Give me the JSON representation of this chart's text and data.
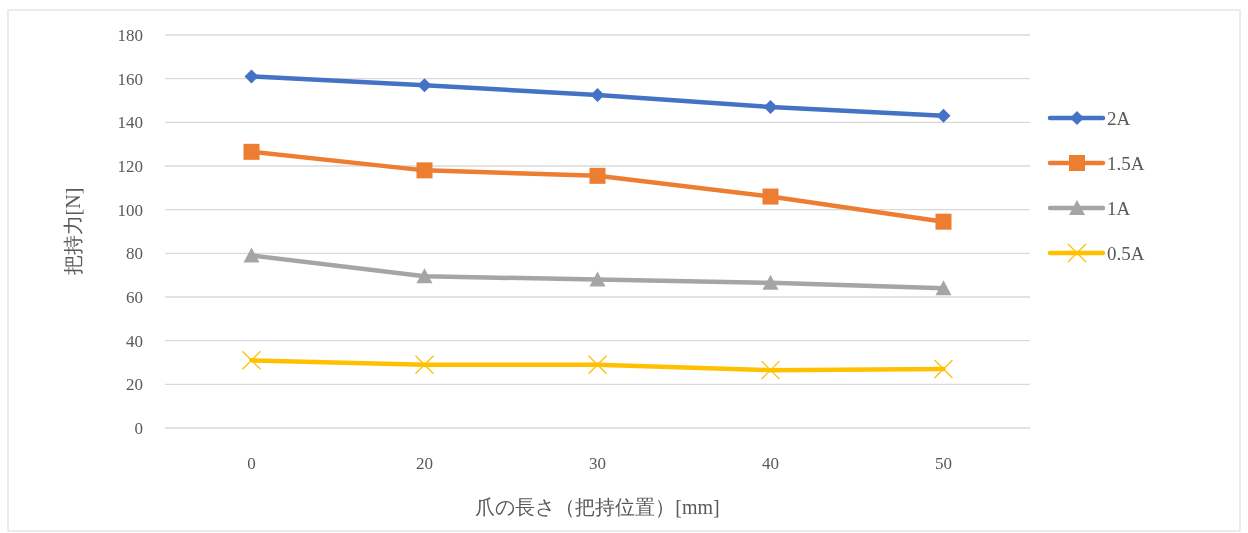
{
  "chart_data": {
    "type": "line",
    "xlabel": "爪の長さ（把持位置）[mm]",
    "ylabel": "把持力[N]",
    "categories": [
      "0",
      "20",
      "30",
      "40",
      "50"
    ],
    "series": [
      {
        "name": "2A",
        "color": "#4472c4",
        "marker": "diamond",
        "values": [
          161,
          157,
          152.5,
          147,
          143
        ]
      },
      {
        "name": "1.5A",
        "color": "#ed7d31",
        "marker": "square",
        "values": [
          126.5,
          118,
          115.5,
          106,
          94.5
        ]
      },
      {
        "name": "1A",
        "color": "#a5a5a5",
        "marker": "triangle",
        "values": [
          79,
          69.5,
          68,
          66.5,
          64
        ]
      },
      {
        "name": "0.5A",
        "color": "#ffc000",
        "marker": "cross",
        "values": [
          31,
          29,
          29,
          26.5,
          27
        ]
      }
    ],
    "ylim": [
      0,
      180
    ],
    "yticks": [
      0,
      20,
      40,
      60,
      80,
      100,
      120,
      140,
      160,
      180
    ],
    "grid": "y",
    "legend": "right"
  }
}
